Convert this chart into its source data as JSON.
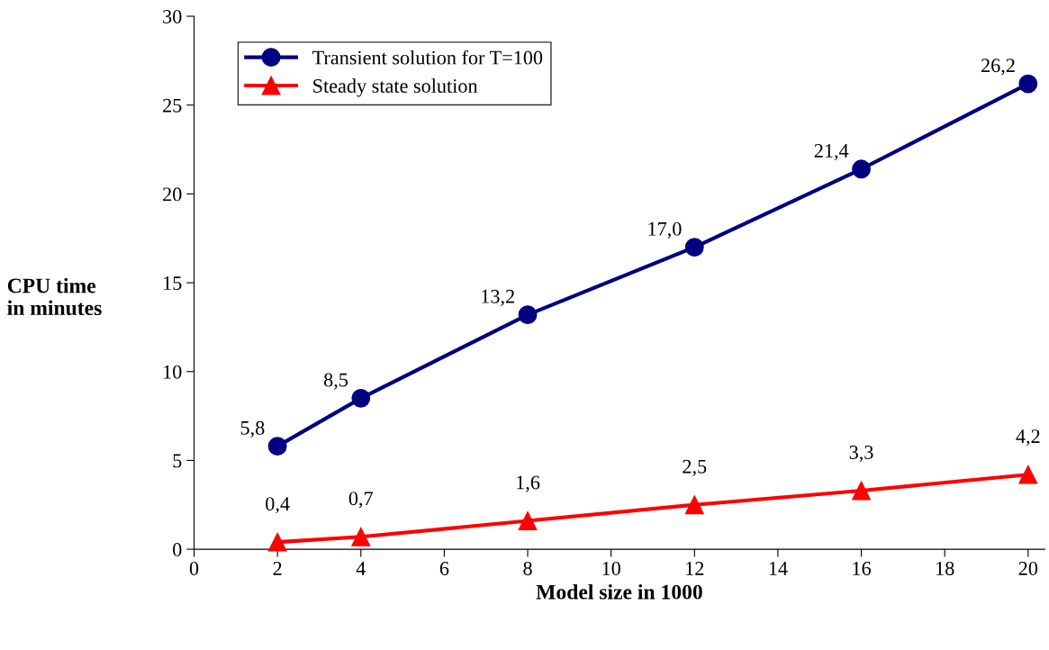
{
  "chart_data": {
    "type": "line",
    "xlabel": "Model size in 1000",
    "ylabel": "CPU time\nin minutes",
    "x": [
      2,
      4,
      8,
      12,
      16,
      20
    ],
    "series": [
      {
        "name": "Transient solution for T=100",
        "color": "#000080",
        "marker": "circle",
        "values": [
          5.8,
          8.5,
          13.2,
          17.0,
          21.4,
          26.2
        ],
        "value_labels": [
          "5,8",
          "8,5",
          "13,2",
          "17,0",
          "21,4",
          "26,2"
        ]
      },
      {
        "name": "Steady state solution",
        "color": "#ff0000",
        "marker": "triangle",
        "values": [
          0.4,
          0.7,
          1.6,
          2.5,
          3.3,
          4.2
        ],
        "value_labels": [
          "0,4",
          "0,7",
          "1,6",
          "2,5",
          "3,3",
          "4,2"
        ]
      }
    ],
    "xlim": [
      0,
      20.4
    ],
    "xticks": [
      0,
      2,
      4,
      6,
      8,
      10,
      12,
      14,
      16,
      18,
      20
    ],
    "ylim": [
      0,
      30
    ],
    "yticks": [
      0,
      5,
      10,
      15,
      20,
      25,
      30
    ],
    "grid": false,
    "legend": "top left",
    "line_style": "solid"
  }
}
